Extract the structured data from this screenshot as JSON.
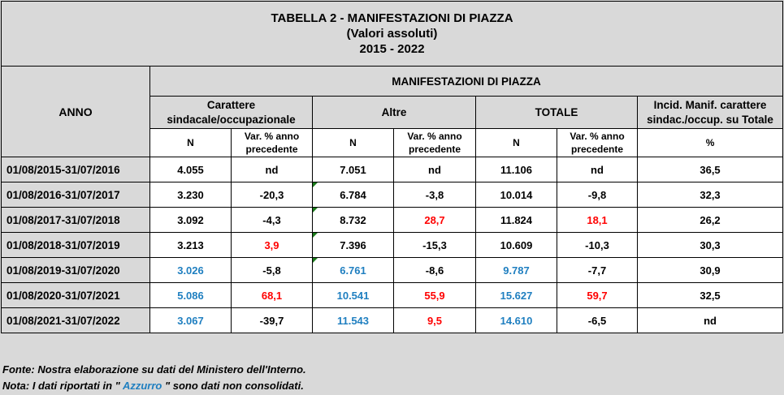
{
  "title": {
    "line1": "TABELLA 2 - MANIFESTAZIONI DI PIAZZA",
    "line2": "(Valori assoluti)",
    "line3": "2015 - 2022"
  },
  "headers": {
    "anno": "ANNO",
    "group": "MANIFESTAZIONI DI PIAZZA",
    "col_sind_1": "Carattere",
    "col_sind_2": "sindacale/occupazionale",
    "col_altre": "Altre",
    "col_totale": "TOTALE",
    "col_incid_1": "Incid. Manif. carattere",
    "col_incid_2": "sindac./occup. su Totale",
    "n": "N",
    "var_1": "Var. % anno",
    "var_2": "precedente",
    "pct": "%"
  },
  "rows": [
    {
      "anno": "01/08/2015-31/07/2016",
      "sind_n": "4.055",
      "sind_var": "nd",
      "altre_n": "7.051",
      "altre_var": "nd",
      "tot_n": "11.106",
      "tot_var": "nd",
      "incid": "36,5"
    },
    {
      "anno": "01/08/2016-31/07/2017",
      "sind_n": "3.230",
      "sind_var": "-20,3",
      "altre_n": "6.784",
      "altre_var": "-3,8",
      "tot_n": "10.014",
      "tot_var": "-9,8",
      "incid": "32,3"
    },
    {
      "anno": "01/08/2017-31/07/2018",
      "sind_n": "3.092",
      "sind_var": "-4,3",
      "altre_n": "8.732",
      "altre_var": "28,7",
      "tot_n": "11.824",
      "tot_var": "18,1",
      "incid": "26,2"
    },
    {
      "anno": "01/08/2018-31/07/2019",
      "sind_n": "3.213",
      "sind_var": "3,9",
      "altre_n": "7.396",
      "altre_var": "-15,3",
      "tot_n": "10.609",
      "tot_var": "-10,3",
      "incid": "30,3"
    },
    {
      "anno": "01/08/2019-31/07/2020",
      "sind_n": "3.026",
      "sind_var": "-5,8",
      "altre_n": "6.761",
      "altre_var": "-8,6",
      "tot_n": "9.787",
      "tot_var": "-7,7",
      "incid": "30,9"
    },
    {
      "anno": "01/08/2020-31/07/2021",
      "sind_n": "5.086",
      "sind_var": "68,1",
      "altre_n": "10.541",
      "altre_var": "55,9",
      "tot_n": "15.627",
      "tot_var": "59,7",
      "incid": "32,5"
    },
    {
      "anno": "01/08/2021-31/07/2022",
      "sind_n": "3.067",
      "sind_var": "-39,7",
      "altre_n": "11.543",
      "altre_var": "9,5",
      "tot_n": "14.610",
      "tot_var": "-6,5",
      "incid": "nd"
    }
  ],
  "footer": {
    "fonte": "Fonte: Nostra elaborazione su dati del Ministero dell'Interno.",
    "nota_pre": "Nota: I dati riportati in \" ",
    "nota_azzurro": "Azzurro",
    "nota_post": " \" sono dati non consolidati."
  },
  "colors": {
    "positive_var": "#ff0000",
    "non_consolidated": "#1f7fc0",
    "header_bg": "#d9d9d9",
    "cell_bg": "#ffffff"
  }
}
